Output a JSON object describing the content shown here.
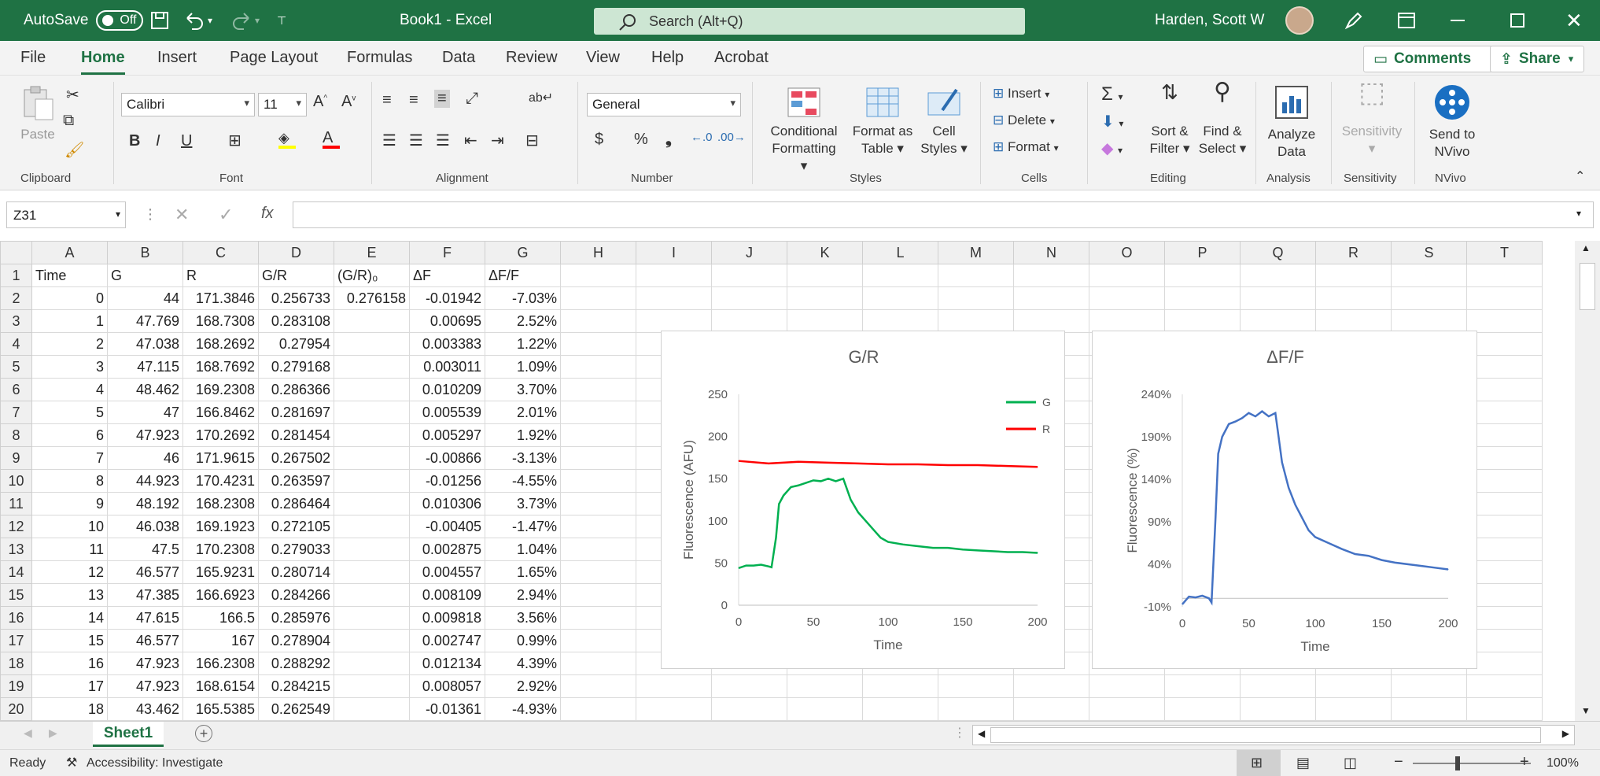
{
  "titlebar": {
    "autosave_label": "AutoSave",
    "autosave_state": "Off",
    "doc_title": "Book1  -  Excel",
    "search_placeholder": "Search (Alt+Q)",
    "user_name": "Harden, Scott W"
  },
  "menu": {
    "tabs": [
      "File",
      "Home",
      "Insert",
      "Page Layout",
      "Formulas",
      "Data",
      "Review",
      "View",
      "Help",
      "Acrobat"
    ],
    "active": "Home",
    "comments_label": "Comments",
    "share_label": "Share"
  },
  "ribbon": {
    "clipboard": {
      "paste": "Paste",
      "label": "Clipboard"
    },
    "font": {
      "name": "Calibri",
      "size": "11",
      "label": "Font",
      "bold": "B",
      "italic": "I",
      "underline": "U"
    },
    "alignment": {
      "label": "Alignment"
    },
    "number": {
      "format": "General",
      "label": "Number",
      "currency": "$",
      "percent": "%",
      "comma": "❟"
    },
    "styles": {
      "conditional": "Conditional",
      "conditional2": "Formatting",
      "format_as": "Format as",
      "format_as2": "Table",
      "cell": "Cell",
      "cell2": "Styles",
      "label": "Styles"
    },
    "cells": {
      "insert": "Insert",
      "delete": "Delete",
      "format": "Format",
      "label": "Cells"
    },
    "editing": {
      "sort": "Sort &",
      "sort2": "Filter",
      "find": "Find &",
      "find2": "Select",
      "label": "Editing"
    },
    "analysis": {
      "analyze": "Analyze",
      "analyze2": "Data",
      "label": "Analysis"
    },
    "sensitivity": {
      "name": "Sensitivity",
      "label": "Sensitivity"
    },
    "nvivo": {
      "send": "Send to",
      "send2": "NVivo",
      "label": "NVivo"
    }
  },
  "formula_bar": {
    "name_box": "Z31",
    "fx": "fx",
    "content": ""
  },
  "sheet": {
    "columns": [
      "A",
      "B",
      "C",
      "D",
      "E",
      "F",
      "G",
      "H",
      "I",
      "J",
      "K",
      "L",
      "M",
      "N",
      "O",
      "P",
      "Q",
      "R",
      "S",
      "T"
    ],
    "row_numbers": [
      "1",
      "2",
      "3",
      "4",
      "5",
      "6",
      "7",
      "8",
      "9",
      "10",
      "11",
      "12",
      "13",
      "14",
      "15",
      "16",
      "17",
      "18",
      "19",
      "20"
    ],
    "rows": [
      [
        "Time",
        "G",
        "R",
        "G/R",
        "(G/R)₀",
        "ΔF",
        "ΔF/F"
      ],
      [
        "0",
        "44",
        "171.3846",
        "0.256733",
        "0.276158",
        "-0.01942",
        "-7.03%"
      ],
      [
        "1",
        "47.769",
        "168.7308",
        "0.283108",
        "",
        "0.00695",
        "2.52%"
      ],
      [
        "2",
        "47.038",
        "168.2692",
        "0.27954",
        "",
        "0.003383",
        "1.22%"
      ],
      [
        "3",
        "47.115",
        "168.7692",
        "0.279168",
        "",
        "0.003011",
        "1.09%"
      ],
      [
        "4",
        "48.462",
        "169.2308",
        "0.286366",
        "",
        "0.010209",
        "3.70%"
      ],
      [
        "5",
        "47",
        "166.8462",
        "0.281697",
        "",
        "0.005539",
        "2.01%"
      ],
      [
        "6",
        "47.923",
        "170.2692",
        "0.281454",
        "",
        "0.005297",
        "1.92%"
      ],
      [
        "7",
        "46",
        "171.9615",
        "0.267502",
        "",
        "-0.00866",
        "-3.13%"
      ],
      [
        "8",
        "44.923",
        "170.4231",
        "0.263597",
        "",
        "-0.01256",
        "-4.55%"
      ],
      [
        "9",
        "48.192",
        "168.2308",
        "0.286464",
        "",
        "0.010306",
        "3.73%"
      ],
      [
        "10",
        "46.038",
        "169.1923",
        "0.272105",
        "",
        "-0.00405",
        "-1.47%"
      ],
      [
        "11",
        "47.5",
        "170.2308",
        "0.279033",
        "",
        "0.002875",
        "1.04%"
      ],
      [
        "12",
        "46.577",
        "165.9231",
        "0.280714",
        "",
        "0.004557",
        "1.65%"
      ],
      [
        "13",
        "47.385",
        "166.6923",
        "0.284266",
        "",
        "0.008109",
        "2.94%"
      ],
      [
        "14",
        "47.615",
        "166.5",
        "0.285976",
        "",
        "0.009818",
        "3.56%"
      ],
      [
        "15",
        "46.577",
        "167",
        "0.278904",
        "",
        "0.002747",
        "0.99%"
      ],
      [
        "16",
        "47.923",
        "166.2308",
        "0.288292",
        "",
        "0.012134",
        "4.39%"
      ],
      [
        "17",
        "47.923",
        "168.6154",
        "0.284215",
        "",
        "0.008057",
        "2.92%"
      ],
      [
        "18",
        "43.462",
        "165.5385",
        "0.262549",
        "",
        "-0.01361",
        "-4.93%"
      ]
    ]
  },
  "chart_data": [
    {
      "type": "line",
      "title": "G/R",
      "xlabel": "Time",
      "ylabel": "Fluorescence (AFU)",
      "xlim": [
        0,
        200
      ],
      "ylim": [
        0,
        250
      ],
      "xticks": [
        "0",
        "50",
        "100",
        "150",
        "200"
      ],
      "yticks": [
        "0",
        "50",
        "100",
        "150",
        "200",
        "250"
      ],
      "legend": "top-right",
      "series": [
        {
          "name": "G",
          "color": "#00b050",
          "x": [
            0,
            5,
            10,
            15,
            20,
            22,
            25,
            27,
            30,
            35,
            40,
            45,
            50,
            55,
            60,
            65,
            70,
            72,
            75,
            80,
            85,
            90,
            95,
            100,
            110,
            120,
            130,
            140,
            150,
            160,
            170,
            180,
            190,
            200
          ],
          "y": [
            44,
            47,
            47,
            48,
            46,
            45,
            80,
            120,
            130,
            140,
            142,
            145,
            148,
            147,
            150,
            147,
            150,
            140,
            125,
            110,
            100,
            90,
            80,
            75,
            72,
            70,
            68,
            68,
            66,
            65,
            64,
            63,
            63,
            62
          ]
        },
        {
          "name": "R",
          "color": "#ff0000",
          "x": [
            0,
            20,
            40,
            60,
            80,
            100,
            120,
            140,
            160,
            180,
            200
          ],
          "y": [
            171,
            168,
            170,
            169,
            168,
            167,
            167,
            166,
            166,
            165,
            164
          ]
        }
      ]
    },
    {
      "type": "line",
      "title": "ΔF/F",
      "xlabel": "Time",
      "ylabel": "Fluorescence (%)",
      "xlim": [
        0,
        200
      ],
      "ylim": [
        -10,
        240
      ],
      "xticks": [
        "0",
        "50",
        "100",
        "150",
        "200"
      ],
      "yticks": [
        "-10%",
        "40%",
        "90%",
        "140%",
        "190%",
        "240%"
      ],
      "series": [
        {
          "name": "ΔF/F",
          "color": "#4472c4",
          "x": [
            0,
            5,
            10,
            15,
            20,
            22,
            25,
            27,
            30,
            35,
            40,
            45,
            50,
            55,
            60,
            65,
            70,
            72,
            75,
            80,
            85,
            90,
            95,
            100,
            110,
            120,
            130,
            140,
            150,
            160,
            170,
            180,
            190,
            200
          ],
          "y": [
            -7,
            2,
            1,
            3,
            0,
            -5,
            95,
            170,
            190,
            205,
            208,
            212,
            218,
            214,
            220,
            214,
            218,
            195,
            160,
            130,
            110,
            95,
            80,
            72,
            65,
            58,
            52,
            50,
            45,
            42,
            40,
            38,
            36,
            34
          ]
        }
      ]
    }
  ],
  "sheet_tab": {
    "name": "Sheet1"
  },
  "status": {
    "ready": "Ready",
    "accessibility": "Accessibility: Investigate",
    "zoom": "100%"
  }
}
